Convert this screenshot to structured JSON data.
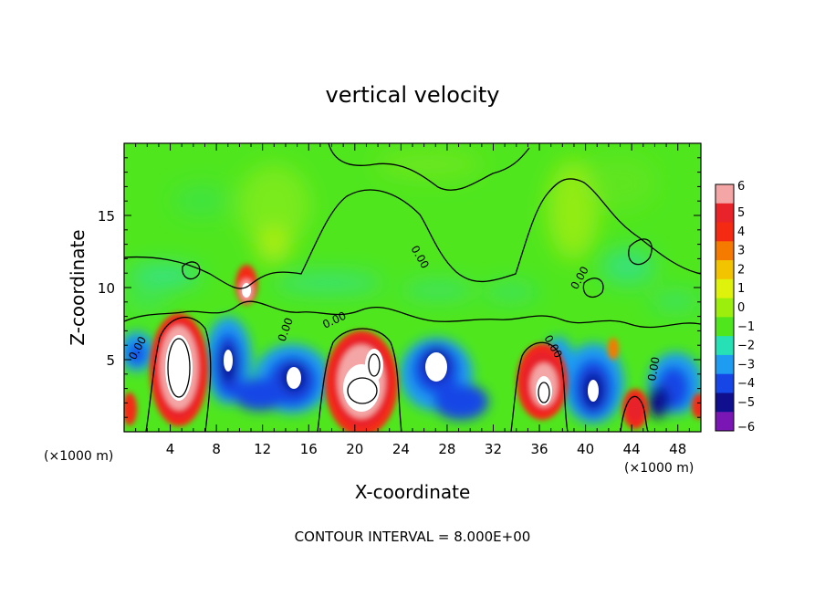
{
  "chart_data": {
    "type": "heatmap",
    "title": "vertical velocity",
    "xlabel": "X-coordinate",
    "ylabel": "Z-coordinate",
    "x_unit_label_left": "(×1000 m)",
    "x_unit_label_right": "(×1000 m)",
    "xlim": [
      0,
      50
    ],
    "ylim": [
      0,
      20
    ],
    "x_ticks": [
      4,
      8,
      12,
      16,
      20,
      24,
      28,
      32,
      36,
      40,
      44,
      48
    ],
    "x_tick_labels": [
      "4",
      "8",
      "12",
      "16",
      "20",
      "24",
      "28",
      "32",
      "36",
      "40",
      "44",
      "48"
    ],
    "y_ticks": [
      5,
      10,
      15
    ],
    "y_tick_labels": [
      "5",
      "10",
      "15"
    ],
    "footer": "CONTOUR INTERVAL = 8.000E+00",
    "contour_label": "0.00",
    "colorbar": {
      "levels": [
        6,
        5,
        4,
        3,
        2,
        1,
        0,
        -1,
        -2,
        -3,
        -4,
        -5,
        -6
      ],
      "labels": [
        "6",
        "5",
        "4",
        "3",
        "2",
        "1",
        "0",
        "−1",
        "−2",
        "−3",
        "−4",
        "−5",
        "−6"
      ],
      "colors": [
        "#f4a6a6",
        "#e8232a",
        "#f42a12",
        "#f47a00",
        "#f2c400",
        "#dff20c",
        "#9cee0c",
        "#4fe61e",
        "#26e0b6",
        "#1e9cf2",
        "#1646e6",
        "#10108e",
        "#7a16b4"
      ]
    },
    "features": [
      {
        "type": "updraft",
        "x": 4.6,
        "z": 4.3,
        "peak": 6
      },
      {
        "type": "updraft",
        "x": 10.6,
        "z": 9.6,
        "peak": 5
      },
      {
        "type": "updraft",
        "x": 21.3,
        "z": 3.5,
        "peak": 6
      },
      {
        "type": "updraft",
        "x": 36.0,
        "z": 3.1,
        "peak": 6
      },
      {
        "type": "updraft",
        "x": 44.4,
        "z": 1.3,
        "peak": 5
      },
      {
        "type": "downdraft",
        "x": 9.4,
        "z": 4.4,
        "peak": -6
      },
      {
        "type": "downdraft",
        "x": 14.5,
        "z": 3.6,
        "peak": -6
      },
      {
        "type": "downdraft",
        "x": 27.0,
        "z": 4.3,
        "peak": -6
      },
      {
        "type": "downdraft",
        "x": 40.9,
        "z": 3.3,
        "peak": -6
      },
      {
        "type": "downdraft",
        "x": 47.5,
        "z": 3.5,
        "peak": -5
      }
    ]
  }
}
